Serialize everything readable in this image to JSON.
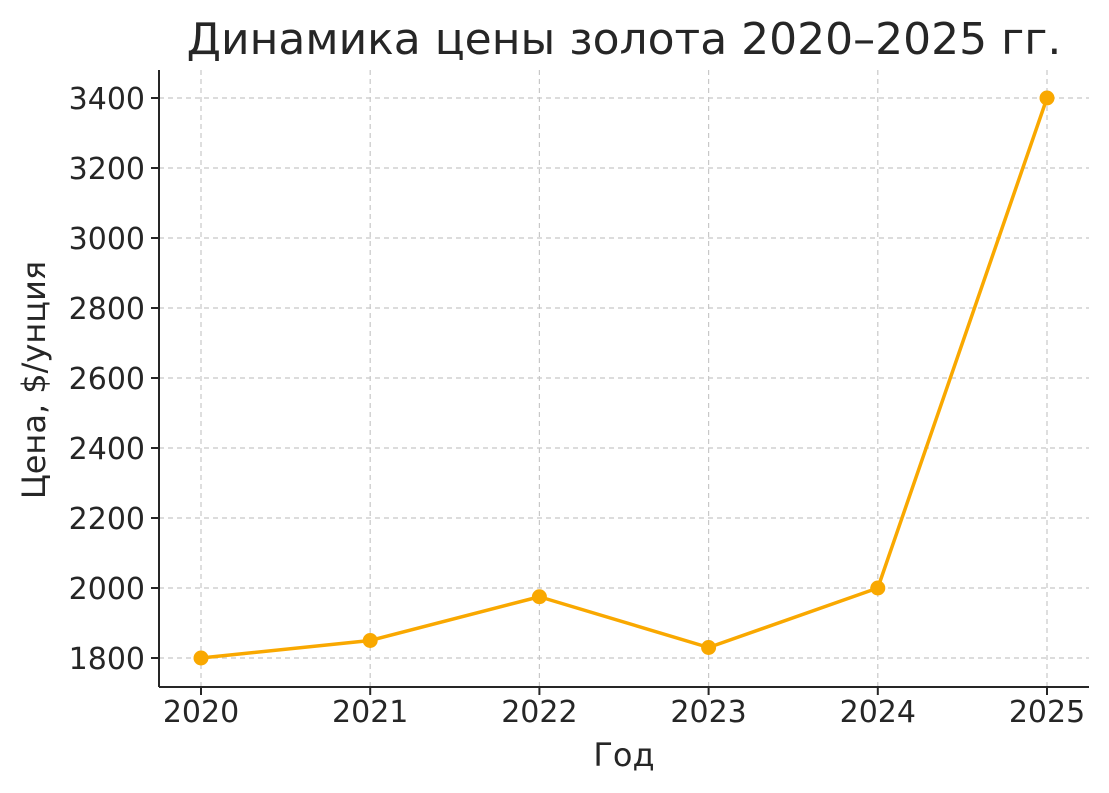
{
  "chart_data": {
    "type": "line",
    "title": "Динамика цены золота 2020–2025 гг.",
    "xlabel": "Год",
    "ylabel": "Цена, $/унция",
    "categories": [
      "2020",
      "2021",
      "2022",
      "2023",
      "2024",
      "2025"
    ],
    "series": [
      {
        "values": [
          1800,
          1850,
          1975,
          1830,
          2000,
          3400
        ],
        "color": "#f9a800"
      }
    ],
    "yticks": [
      1800,
      2000,
      2200,
      2400,
      2600,
      2800,
      3000,
      3200,
      3400
    ],
    "ylim": [
      1720,
      3480
    ],
    "grid": true,
    "grid_style": "dashed",
    "marker": "circle"
  }
}
